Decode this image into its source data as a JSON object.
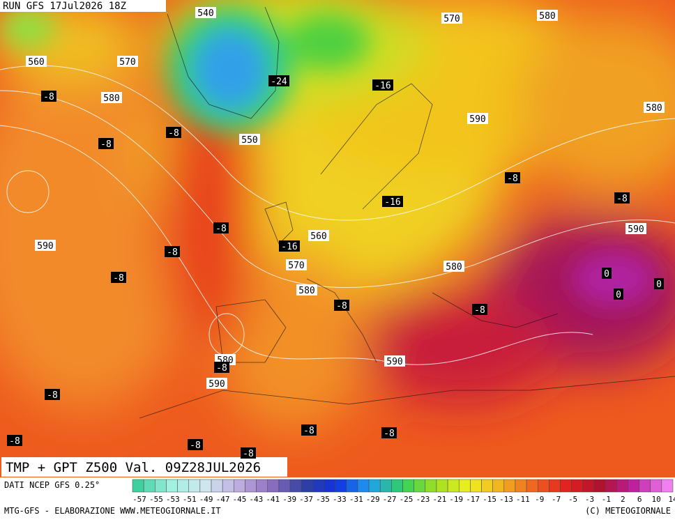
{
  "header": {
    "run": "RUN GFS 17Jul2026 18Z"
  },
  "map": {
    "title": "TMP + GPT Z500 Val. 09Z28JUL2026",
    "height_labels": [
      "540",
      "570",
      "580",
      "560",
      "570",
      "580",
      "590",
      "580",
      "550",
      "590",
      "560",
      "590",
      "570",
      "580",
      "580",
      "580",
      "590",
      "590"
    ],
    "temperature_labels": [
      "-24",
      "-16",
      "-8",
      "-8",
      "-8",
      "-8",
      "-16",
      "-8",
      "-8",
      "-16",
      "-8",
      "0",
      "-8",
      "0",
      "0",
      "-8",
      "-8",
      "-8",
      "-8",
      "-8",
      "-8",
      "-8",
      "-8",
      "-8"
    ]
  },
  "footer": {
    "source": "DATI NCEP GFS 0.25°",
    "credit": "MTG-GFS - ELABORAZIONE WWW.METEOGIORNALE.IT",
    "copyright": "(C) METEOGIORNALE"
  },
  "colorbar": {
    "ticks": [
      -57,
      -55,
      -53,
      -51,
      -49,
      -47,
      -45,
      -43,
      -41,
      -39,
      -37,
      -35,
      -33,
      -31,
      -29,
      -27,
      -25,
      -23,
      -21,
      -19,
      -17,
      -15,
      -13,
      -11,
      -9,
      -7,
      -5,
      -3,
      -1,
      2,
      6,
      10,
      14
    ]
  }
}
